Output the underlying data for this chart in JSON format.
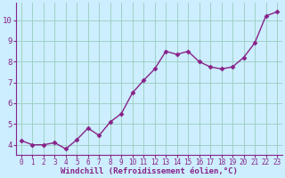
{
  "x": [
    0,
    1,
    2,
    3,
    4,
    5,
    6,
    7,
    8,
    9,
    10,
    11,
    12,
    13,
    14,
    15,
    16,
    17,
    18,
    19,
    20,
    21,
    22,
    23
  ],
  "y": [
    4.2,
    4.0,
    4.0,
    4.1,
    3.8,
    4.25,
    4.8,
    4.45,
    5.1,
    5.5,
    6.5,
    7.1,
    7.65,
    8.5,
    8.35,
    8.5,
    8.0,
    7.75,
    7.65,
    7.75,
    8.2,
    8.9,
    10.2,
    10.4
  ],
  "line_color": "#882288",
  "marker": "D",
  "marker_size": 2.5,
  "background_color": "#cceeff",
  "grid_color": "#99ccbb",
  "xlabel": "Windchill (Refroidissement éolien,°C)",
  "xlabel_color": "#882288",
  "tick_color": "#882288",
  "ylim": [
    3.5,
    10.85
  ],
  "xlim": [
    -0.5,
    23.5
  ],
  "yticks": [
    4,
    5,
    6,
    7,
    8,
    9,
    10
  ],
  "xticks": [
    0,
    1,
    2,
    3,
    4,
    5,
    6,
    7,
    8,
    9,
    10,
    11,
    12,
    13,
    14,
    15,
    16,
    17,
    18,
    19,
    20,
    21,
    22,
    23
  ],
  "spine_color": "#882288",
  "linewidth": 1.0,
  "tick_fontsize": 5.5,
  "ytick_fontsize": 6.5,
  "xlabel_fontsize": 6.5
}
